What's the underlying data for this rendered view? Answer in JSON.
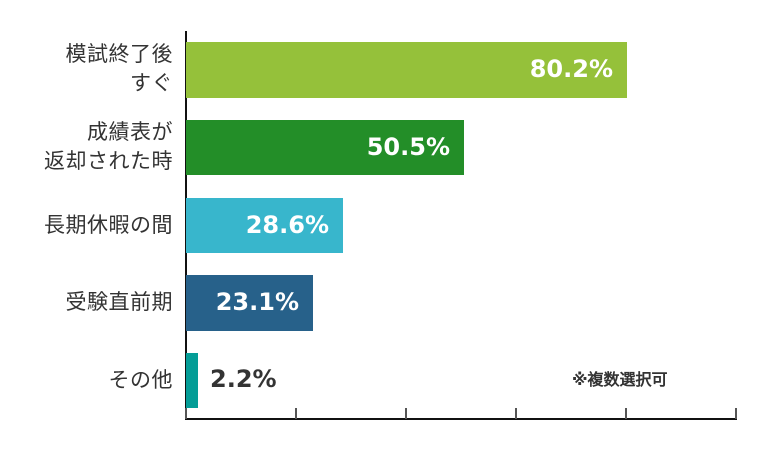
{
  "chart_data": {
    "type": "bar",
    "orientation": "horizontal",
    "categories": [
      "模試終了後すぐ",
      "成績表が返却された時",
      "長期休暇の間",
      "受験直前期",
      "その他"
    ],
    "category_lines": [
      [
        "模試終了後",
        "すぐ"
      ],
      [
        "成績表が",
        "返却された時"
      ],
      [
        "長期休暇の間"
      ],
      [
        "受験直前期"
      ],
      [
        "その他"
      ]
    ],
    "values": [
      80.2,
      50.5,
      28.6,
      23.1,
      2.2
    ],
    "value_labels": [
      "80.2%",
      "50.5%",
      "28.6%",
      "23.1%",
      "2.2%"
    ],
    "colors": [
      "#95c13a",
      "#238e28",
      "#38b6cc",
      "#27618a",
      "#049d97"
    ],
    "xlim": [
      0,
      100
    ],
    "x_ticks": [
      0,
      20,
      40,
      60,
      80,
      100
    ],
    "unit": "%",
    "grid": false,
    "legend": null,
    "annotation": "※複数選択可",
    "title": "",
    "xlabel": "",
    "ylabel": ""
  }
}
